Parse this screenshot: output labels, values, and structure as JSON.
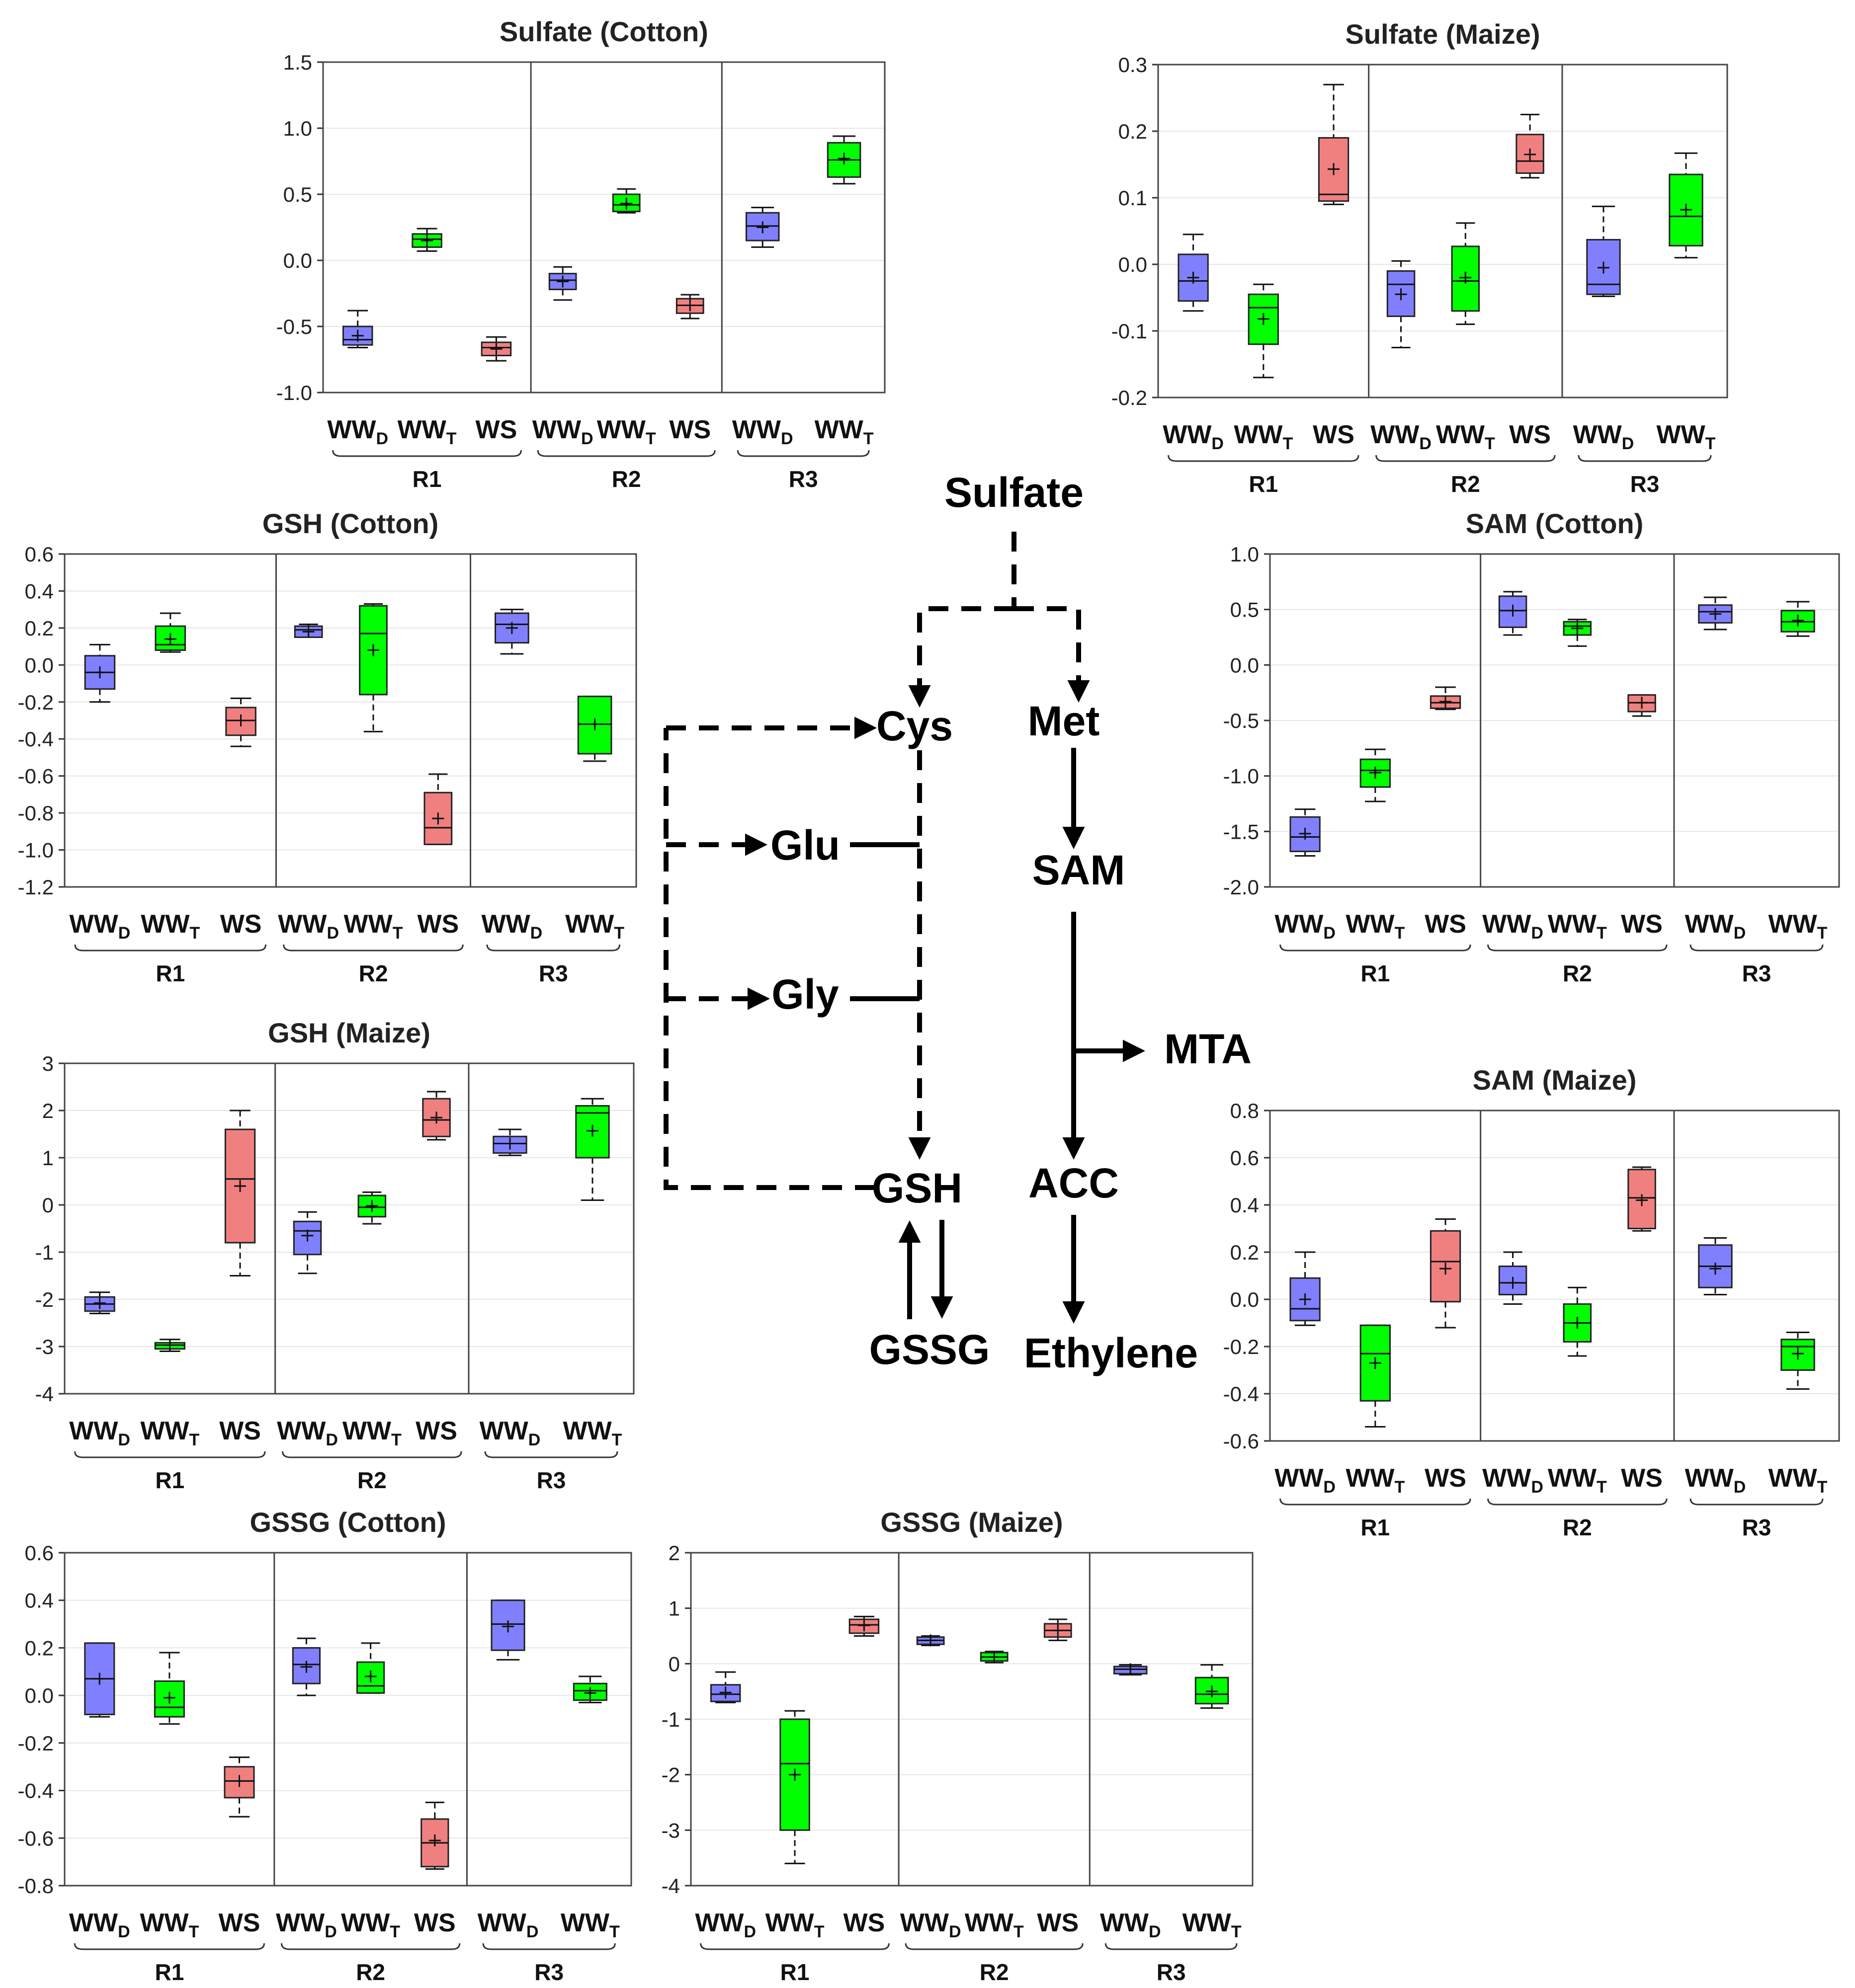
{
  "figure": {
    "group_colors": {
      "WWD": "#8080ff",
      "WWT": "#00ff00",
      "WS": "#f08080"
    },
    "group_labels": {
      "WWD": {
        "main": "WW",
        "sub": "D"
      },
      "WWT": {
        "main": "WW",
        "sub": "T"
      },
      "WS": {
        "main": "WS",
        "sub": ""
      }
    },
    "region_labels": [
      "R1",
      "R2",
      "R3"
    ]
  },
  "pathway": {
    "nodes": {
      "sulfate": "Sulfate",
      "cys": "Cys",
      "met": "Met",
      "glu": "Glu",
      "sam": "SAM",
      "gly": "Gly",
      "mta": "MTA",
      "gsh": "GSH",
      "acc": "ACC",
      "gssg": "GSSG",
      "ethylene": "Ethylene"
    }
  },
  "chart_data": [
    {
      "id": "sulfate-cotton",
      "type": "box",
      "title": "Sulfate (Cotton)",
      "ylim": [
        -1.0,
        1.5
      ],
      "yticks": [
        -1.0,
        -0.5,
        0.0,
        0.5,
        1.0,
        1.5
      ],
      "tick_decimals": 1,
      "regions": [
        {
          "name": "R1",
          "boxes": [
            {
              "group": "WWD",
              "min": -0.66,
              "q1": -0.64,
              "median": -0.6,
              "q3": -0.5,
              "max": -0.38,
              "mean": -0.57
            },
            {
              "group": "WWT",
              "min": 0.07,
              "q1": 0.1,
              "median": 0.16,
              "q3": 0.2,
              "max": 0.24,
              "mean": 0.15
            },
            {
              "group": "WS",
              "min": -0.76,
              "q1": -0.72,
              "median": -0.66,
              "q3": -0.62,
              "max": -0.58,
              "mean": -0.67
            }
          ]
        },
        {
          "name": "R2",
          "boxes": [
            {
              "group": "WWD",
              "min": -0.3,
              "q1": -0.22,
              "median": -0.15,
              "q3": -0.1,
              "max": -0.05,
              "mean": -0.16
            },
            {
              "group": "WWT",
              "min": 0.36,
              "q1": 0.37,
              "median": 0.42,
              "q3": 0.5,
              "max": 0.54,
              "mean": 0.43
            },
            {
              "group": "WS",
              "min": -0.44,
              "q1": -0.4,
              "median": -0.34,
              "q3": -0.29,
              "max": -0.26,
              "mean": -0.34
            }
          ]
        },
        {
          "name": "R3",
          "boxes": [
            {
              "group": "WWD",
              "min": 0.1,
              "q1": 0.15,
              "median": 0.26,
              "q3": 0.36,
              "max": 0.4,
              "mean": 0.25
            },
            {
              "group": "WWT",
              "min": 0.58,
              "q1": 0.63,
              "median": 0.76,
              "q3": 0.89,
              "max": 0.94,
              "mean": 0.77
            }
          ]
        }
      ]
    },
    {
      "id": "sulfate-maize",
      "type": "box",
      "title": "Sulfate (Maize)",
      "ylim": [
        -0.2,
        0.3
      ],
      "yticks": [
        -0.2,
        -0.1,
        0.0,
        0.1,
        0.2,
        0.3
      ],
      "tick_decimals": 1,
      "regions": [
        {
          "name": "R1",
          "boxes": [
            {
              "group": "WWD",
              "min": -0.07,
              "q1": -0.055,
              "median": -0.025,
              "q3": 0.015,
              "max": 0.045,
              "mean": -0.02
            },
            {
              "group": "WWT",
              "min": -0.17,
              "q1": -0.12,
              "median": -0.065,
              "q3": -0.045,
              "max": -0.03,
              "mean": -0.082
            },
            {
              "group": "WS",
              "min": 0.09,
              "q1": 0.095,
              "median": 0.105,
              "q3": 0.19,
              "max": 0.27,
              "mean": 0.143
            }
          ]
        },
        {
          "name": "R2",
          "boxes": [
            {
              "group": "WWD",
              "min": -0.125,
              "q1": -0.078,
              "median": -0.03,
              "q3": -0.01,
              "max": 0.005,
              "mean": -0.045
            },
            {
              "group": "WWT",
              "min": -0.09,
              "q1": -0.07,
              "median": -0.025,
              "q3": 0.027,
              "max": 0.062,
              "mean": -0.02
            },
            {
              "group": "WS",
              "min": 0.13,
              "q1": 0.137,
              "median": 0.155,
              "q3": 0.195,
              "max": 0.225,
              "mean": 0.165
            }
          ]
        },
        {
          "name": "R3",
          "boxes": [
            {
              "group": "WWD",
              "min": -0.048,
              "q1": -0.045,
              "median": -0.03,
              "q3": 0.037,
              "max": 0.087,
              "mean": -0.005
            },
            {
              "group": "WWT",
              "min": 0.01,
              "q1": 0.028,
              "median": 0.072,
              "q3": 0.135,
              "max": 0.167,
              "mean": 0.082
            }
          ]
        }
      ]
    },
    {
      "id": "gsh-cotton",
      "type": "box",
      "title": "GSH (Cotton)",
      "ylim": [
        -1.2,
        0.6
      ],
      "yticks": [
        -1.2,
        -1.0,
        -0.8,
        -0.6,
        -0.4,
        -0.2,
        0.0,
        0.2,
        0.4,
        0.6
      ],
      "tick_decimals": 1,
      "regions": [
        {
          "name": "R1",
          "boxes": [
            {
              "group": "WWD",
              "min": -0.2,
              "q1": -0.13,
              "median": -0.04,
              "q3": 0.05,
              "max": 0.11,
              "mean": -0.04
            },
            {
              "group": "WWT",
              "min": 0.07,
              "q1": 0.08,
              "median": 0.11,
              "q3": 0.21,
              "max": 0.28,
              "mean": 0.14
            },
            {
              "group": "WS",
              "min": -0.44,
              "q1": -0.38,
              "median": -0.3,
              "q3": -0.23,
              "max": -0.18,
              "mean": -0.3
            }
          ]
        },
        {
          "name": "R2",
          "boxes": [
            {
              "group": "WWD",
              "min": 0.15,
              "q1": 0.15,
              "median": 0.19,
              "q3": 0.21,
              "max": 0.22,
              "mean": 0.18
            },
            {
              "group": "WWT",
              "min": -0.36,
              "q1": -0.16,
              "median": 0.17,
              "q3": 0.32,
              "max": 0.33,
              "mean": 0.08
            },
            {
              "group": "WS",
              "min": -0.97,
              "q1": -0.97,
              "median": -0.88,
              "q3": -0.69,
              "max": -0.59,
              "mean": -0.83
            }
          ]
        },
        {
          "name": "R3",
          "boxes": [
            {
              "group": "WWD",
              "min": 0.06,
              "q1": 0.12,
              "median": 0.22,
              "q3": 0.28,
              "max": 0.3,
              "mean": 0.2
            },
            {
              "group": "WWT",
              "min": -0.52,
              "q1": -0.48,
              "median": -0.32,
              "q3": -0.17,
              "max": -0.17,
              "mean": -0.32
            }
          ]
        }
      ]
    },
    {
      "id": "sam-cotton",
      "type": "box",
      "title": "SAM (Cotton)",
      "ylim": [
        -2.0,
        1.0
      ],
      "yticks": [
        -2.0,
        -1.5,
        -1.0,
        -0.5,
        0.0,
        0.5,
        1.0
      ],
      "tick_decimals": 1,
      "regions": [
        {
          "name": "R1",
          "boxes": [
            {
              "group": "WWD",
              "min": -1.72,
              "q1": -1.68,
              "median": -1.55,
              "q3": -1.37,
              "max": -1.3,
              "mean": -1.52
            },
            {
              "group": "WWT",
              "min": -1.23,
              "q1": -1.1,
              "median": -0.95,
              "q3": -0.85,
              "max": -0.76,
              "mean": -0.97
            },
            {
              "group": "WS",
              "min": -0.4,
              "q1": -0.39,
              "median": -0.34,
              "q3": -0.28,
              "max": -0.2,
              "mean": -0.33
            }
          ]
        },
        {
          "name": "R2",
          "boxes": [
            {
              "group": "WWD",
              "min": 0.27,
              "q1": 0.34,
              "median": 0.49,
              "q3": 0.62,
              "max": 0.66,
              "mean": 0.49
            },
            {
              "group": "WWT",
              "min": 0.17,
              "q1": 0.27,
              "median": 0.35,
              "q3": 0.39,
              "max": 0.41,
              "mean": 0.33
            },
            {
              "group": "WS",
              "min": -0.46,
              "q1": -0.42,
              "median": -0.34,
              "q3": -0.27,
              "max": -0.27,
              "mean": -0.34
            }
          ]
        },
        {
          "name": "R3",
          "boxes": [
            {
              "group": "WWD",
              "min": 0.32,
              "q1": 0.38,
              "median": 0.48,
              "q3": 0.54,
              "max": 0.61,
              "mean": 0.46
            },
            {
              "group": "WWT",
              "min": 0.26,
              "q1": 0.3,
              "median": 0.39,
              "q3": 0.49,
              "max": 0.57,
              "mean": 0.4
            }
          ]
        }
      ]
    },
    {
      "id": "gsh-maize",
      "type": "box",
      "title": "GSH (Maize)",
      "ylim": [
        -4,
        3
      ],
      "yticks": [
        -4,
        -3,
        -2,
        -1,
        0,
        1,
        2,
        3
      ],
      "tick_decimals": 0,
      "regions": [
        {
          "name": "R1",
          "boxes": [
            {
              "group": "WWD",
              "min": -2.3,
              "q1": -2.25,
              "median": -2.1,
              "q3": -1.95,
              "max": -1.85,
              "mean": -2.08
            },
            {
              "group": "WWT",
              "min": -3.1,
              "q1": -3.05,
              "median": -2.97,
              "q3": -2.92,
              "max": -2.85,
              "mean": -2.97
            },
            {
              "group": "WS",
              "min": -1.5,
              "q1": -0.8,
              "median": 0.55,
              "q3": 1.6,
              "max": 2.0,
              "mean": 0.4
            }
          ]
        },
        {
          "name": "R2",
          "boxes": [
            {
              "group": "WWD",
              "min": -1.45,
              "q1": -1.05,
              "median": -0.55,
              "q3": -0.35,
              "max": -0.15,
              "mean": -0.65
            },
            {
              "group": "WWT",
              "min": -0.4,
              "q1": -0.25,
              "median": -0.05,
              "q3": 0.2,
              "max": 0.27,
              "mean": -0.02
            },
            {
              "group": "WS",
              "min": 1.38,
              "q1": 1.45,
              "median": 1.8,
              "q3": 2.25,
              "max": 2.4,
              "mean": 1.85
            }
          ]
        },
        {
          "name": "R3",
          "boxes": [
            {
              "group": "WWD",
              "min": 1.05,
              "q1": 1.1,
              "median": 1.3,
              "q3": 1.45,
              "max": 1.6,
              "mean": 1.3
            },
            {
              "group": "WWT",
              "min": 0.1,
              "q1": 1.0,
              "median": 1.95,
              "q3": 2.1,
              "max": 2.25,
              "mean": 1.57
            }
          ]
        }
      ]
    },
    {
      "id": "sam-maize",
      "type": "box",
      "title": "SAM (Maize)",
      "ylim": [
        -0.6,
        0.8
      ],
      "yticks": [
        -0.6,
        -0.4,
        -0.2,
        0.0,
        0.2,
        0.4,
        0.6,
        0.8
      ],
      "tick_decimals": 1,
      "regions": [
        {
          "name": "R1",
          "boxes": [
            {
              "group": "WWD",
              "min": -0.11,
              "q1": -0.09,
              "median": -0.04,
              "q3": 0.09,
              "max": 0.2,
              "mean": 0.0
            },
            {
              "group": "WWT",
              "min": -0.54,
              "q1": -0.43,
              "median": -0.23,
              "q3": -0.11,
              "max": -0.11,
              "mean": -0.27
            },
            {
              "group": "WS",
              "min": -0.12,
              "q1": -0.01,
              "median": 0.16,
              "q3": 0.29,
              "max": 0.34,
              "mean": 0.13
            }
          ]
        },
        {
          "name": "R2",
          "boxes": [
            {
              "group": "WWD",
              "min": -0.02,
              "q1": 0.02,
              "median": 0.07,
              "q3": 0.14,
              "max": 0.2,
              "mean": 0.07
            },
            {
              "group": "WWT",
              "min": -0.24,
              "q1": -0.18,
              "median": -0.1,
              "q3": -0.02,
              "max": 0.05,
              "mean": -0.1
            },
            {
              "group": "WS",
              "min": 0.29,
              "q1": 0.3,
              "median": 0.43,
              "q3": 0.55,
              "max": 0.56,
              "mean": 0.42
            }
          ]
        },
        {
          "name": "R3",
          "boxes": [
            {
              "group": "WWD",
              "min": 0.02,
              "q1": 0.05,
              "median": 0.14,
              "q3": 0.23,
              "max": 0.26,
              "mean": 0.13
            },
            {
              "group": "WWT",
              "min": -0.38,
              "q1": -0.3,
              "median": -0.2,
              "q3": -0.17,
              "max": -0.14,
              "mean": -0.23
            }
          ]
        }
      ]
    },
    {
      "id": "gssg-cotton",
      "type": "box",
      "title": "GSSG (Cotton)",
      "ylim": [
        -0.8,
        0.6
      ],
      "yticks": [
        -0.8,
        -0.6,
        -0.4,
        -0.2,
        0.0,
        0.2,
        0.4,
        0.6
      ],
      "tick_decimals": 1,
      "regions": [
        {
          "name": "R1",
          "boxes": [
            {
              "group": "WWD",
              "min": -0.09,
              "q1": -0.08,
              "median": 0.07,
              "q3": 0.22,
              "max": 0.22,
              "mean": 0.07
            },
            {
              "group": "WWT",
              "min": -0.12,
              "q1": -0.09,
              "median": -0.05,
              "q3": 0.06,
              "max": 0.18,
              "mean": -0.01
            },
            {
              "group": "WS",
              "min": -0.51,
              "q1": -0.43,
              "median": -0.36,
              "q3": -0.3,
              "max": -0.26,
              "mean": -0.36
            }
          ]
        },
        {
          "name": "R2",
          "boxes": [
            {
              "group": "WWD",
              "min": 0.0,
              "q1": 0.05,
              "median": 0.13,
              "q3": 0.2,
              "max": 0.24,
              "mean": 0.12
            },
            {
              "group": "WWT",
              "min": 0.01,
              "q1": 0.01,
              "median": 0.04,
              "q3": 0.14,
              "max": 0.22,
              "mean": 0.08
            },
            {
              "group": "WS",
              "min": -0.73,
              "q1": -0.72,
              "median": -0.62,
              "q3": -0.52,
              "max": -0.45,
              "mean": -0.61
            }
          ]
        },
        {
          "name": "R3",
          "boxes": [
            {
              "group": "WWD",
              "min": 0.15,
              "q1": 0.19,
              "median": 0.3,
              "q3": 0.4,
              "max": 0.4,
              "mean": 0.29
            },
            {
              "group": "WWT",
              "min": -0.03,
              "q1": -0.02,
              "median": 0.02,
              "q3": 0.05,
              "max": 0.08,
              "mean": 0.01
            }
          ]
        }
      ]
    },
    {
      "id": "gssg-maize",
      "type": "box",
      "title": "GSSG (Maize)",
      "ylim": [
        -4,
        2
      ],
      "yticks": [
        -4,
        -3,
        -2,
        -1,
        0,
        1,
        2
      ],
      "tick_decimals": 0,
      "regions": [
        {
          "name": "R1",
          "boxes": [
            {
              "group": "WWD",
              "min": -0.7,
              "q1": -0.68,
              "median": -0.55,
              "q3": -0.38,
              "max": -0.15,
              "mean": -0.52
            },
            {
              "group": "WWT",
              "min": -3.6,
              "q1": -3.0,
              "median": -1.8,
              "q3": -1.0,
              "max": -0.85,
              "mean": -2.0
            },
            {
              "group": "WS",
              "min": 0.5,
              "q1": 0.55,
              "median": 0.7,
              "q3": 0.8,
              "max": 0.85,
              "mean": 0.69
            }
          ]
        },
        {
          "name": "R2",
          "boxes": [
            {
              "group": "WWD",
              "min": 0.33,
              "q1": 0.35,
              "median": 0.42,
              "q3": 0.48,
              "max": 0.5,
              "mean": 0.42
            },
            {
              "group": "WWT",
              "min": 0.02,
              "q1": 0.05,
              "median": 0.12,
              "q3": 0.2,
              "max": 0.22,
              "mean": 0.12
            },
            {
              "group": "WS",
              "min": 0.42,
              "q1": 0.48,
              "median": 0.6,
              "q3": 0.72,
              "max": 0.8,
              "mean": 0.6
            }
          ]
        },
        {
          "name": "R3",
          "boxes": [
            {
              "group": "WWD",
              "min": -0.2,
              "q1": -0.18,
              "median": -0.1,
              "q3": -0.05,
              "max": -0.02,
              "mean": -0.1
            },
            {
              "group": "WWT",
              "min": -0.8,
              "q1": -0.72,
              "median": -0.55,
              "q3": -0.25,
              "max": -0.02,
              "mean": -0.5
            }
          ]
        }
      ]
    }
  ]
}
